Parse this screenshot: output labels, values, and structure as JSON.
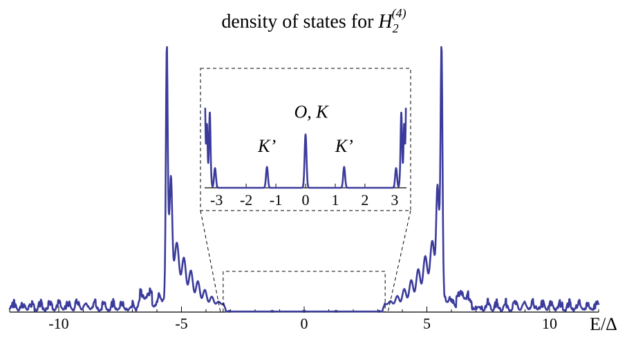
{
  "title": {
    "prefix": "density of states for ",
    "symbol": "H",
    "subscript": "2",
    "superscript": "(4)"
  },
  "chart_data": [
    {
      "type": "line",
      "name": "main",
      "xlabel": "E/Δ",
      "ylabel": "",
      "xlim": [
        -12,
        12
      ],
      "x_ticks": [
        -10,
        -5,
        0,
        5,
        10
      ],
      "x_tick_labels": [
        "-10",
        "-5",
        "0",
        "5",
        "10"
      ],
      "grid": false,
      "series_color": "#3b3b9c",
      "features": {
        "gap_region": [
          -3.3,
          3.3
        ],
        "main_peaks_x": [
          -5.6,
          5.6
        ],
        "main_peak_height": 1.0,
        "tail_noise_level": 0.03
      }
    },
    {
      "type": "line",
      "name": "inset",
      "xlim": [
        -3.4,
        3.4
      ],
      "x_ticks": [
        -3,
        -2,
        -1,
        0,
        1,
        2,
        3
      ],
      "x_tick_labels": [
        "-3",
        "-2",
        "-1",
        "0",
        "1",
        "2",
        "3"
      ],
      "peaks": [
        {
          "x": 0.0,
          "height": 0.46
        },
        {
          "x": -1.3,
          "height": 0.18
        },
        {
          "x": 1.3,
          "height": 0.18
        },
        {
          "x": -3.05,
          "height": 0.17
        },
        {
          "x": 3.05,
          "height": 0.17
        }
      ],
      "edge_rise": {
        "x": [
          -3.3,
          3.3
        ],
        "height": 0.9
      },
      "annotations": [
        {
          "text": "O, K",
          "x": 0.0
        },
        {
          "text": "K’",
          "x": -1.3
        },
        {
          "text": "K’",
          "x": 1.3
        }
      ],
      "zoom_region_in_main": {
        "x": [
          -3.3,
          3.3
        ]
      }
    }
  ]
}
